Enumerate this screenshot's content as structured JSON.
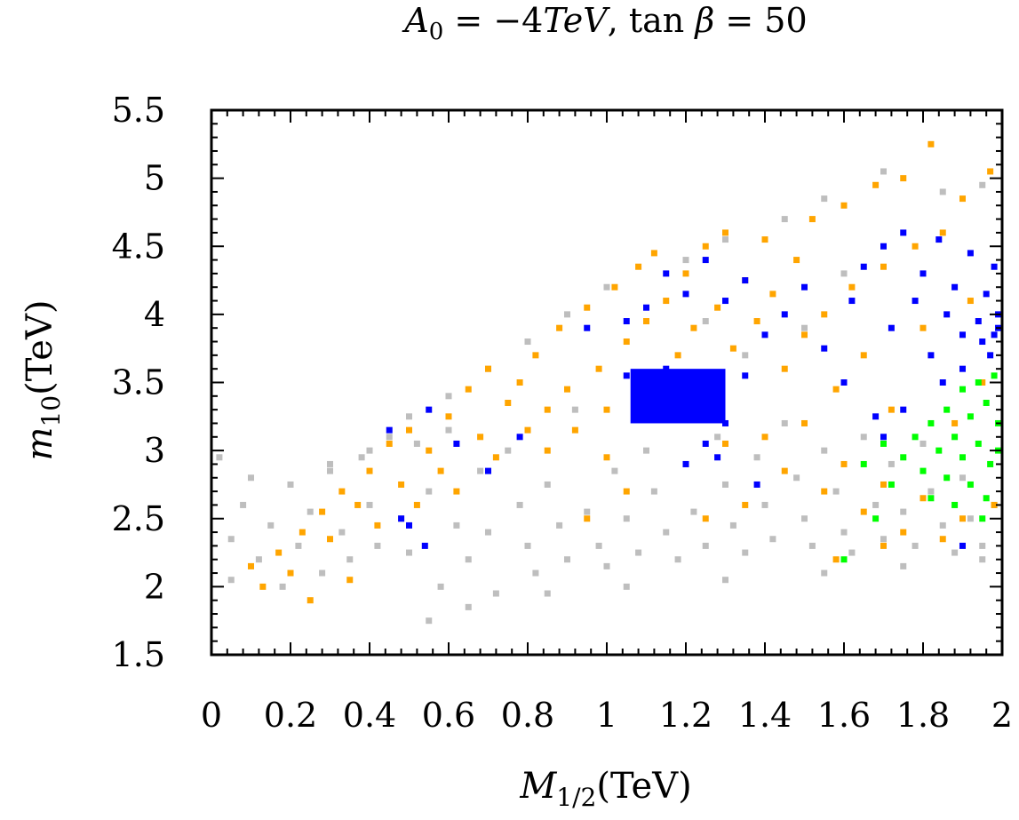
{
  "chart_data": {
    "type": "scatter",
    "title": {
      "lhs": "A",
      "lhs_sub": "0",
      "eq1": " = −4",
      "unit": "TeV",
      "sep": ", tan ",
      "beta": "β",
      "eq2": " = 50"
    },
    "xlabel": {
      "main": "M",
      "sub": "1/2",
      "unit": "(TeV)"
    },
    "ylabel": {
      "main": "m",
      "sub": "10",
      "unit": "(TeV)"
    },
    "xlim": [
      0,
      2
    ],
    "ylim": [
      1.5,
      5.5
    ],
    "x_ticks": [
      "0",
      "0.2",
      "0.4",
      "0.6",
      "0.8",
      "1",
      "1.2",
      "1.4",
      "1.6",
      "1.8",
      "2"
    ],
    "y_ticks": [
      "1.5",
      "2",
      "2.5",
      "3",
      "3.5",
      "4",
      "4.5",
      "5",
      "5.5"
    ],
    "grid": false,
    "legend": "none",
    "colors": {
      "gray": "#bebebe",
      "orange": "#ffa500",
      "blue": "#0000ff",
      "green": "#00ff00"
    },
    "series": [
      {
        "color": "gray",
        "points": [
          [
            0.02,
            2.95
          ],
          [
            0.05,
            2.35
          ],
          [
            0.08,
            2.6
          ],
          [
            0.05,
            2.05
          ],
          [
            0.1,
            2.8
          ],
          [
            0.12,
            2.2
          ],
          [
            0.15,
            2.45
          ],
          [
            0.18,
            2.0
          ],
          [
            0.2,
            2.75
          ],
          [
            0.22,
            2.3
          ],
          [
            0.25,
            2.55
          ],
          [
            0.28,
            2.1
          ],
          [
            0.3,
            2.85
          ],
          [
            0.33,
            2.4
          ],
          [
            0.35,
            2.2
          ],
          [
            0.38,
            2.95
          ],
          [
            0.4,
            2.6
          ],
          [
            0.42,
            2.3
          ],
          [
            0.45,
            3.1
          ],
          [
            0.48,
            2.5
          ],
          [
            0.5,
            2.25
          ],
          [
            0.52,
            3.05
          ],
          [
            0.55,
            2.7
          ],
          [
            0.58,
            2.0
          ],
          [
            0.6,
            3.15
          ],
          [
            0.62,
            2.45
          ],
          [
            0.65,
            2.2
          ],
          [
            0.68,
            2.85
          ],
          [
            0.7,
            2.4
          ],
          [
            0.72,
            1.95
          ],
          [
            0.75,
            3.0
          ],
          [
            0.78,
            2.6
          ],
          [
            0.8,
            2.3
          ],
          [
            0.82,
            2.1
          ],
          [
            0.85,
            2.75
          ],
          [
            0.88,
            2.45
          ],
          [
            0.9,
            2.2
          ],
          [
            0.92,
            3.3
          ],
          [
            0.95,
            2.55
          ],
          [
            0.98,
            2.3
          ],
          [
            1.0,
            2.15
          ],
          [
            1.02,
            2.85
          ],
          [
            1.05,
            2.5
          ],
          [
            1.08,
            2.25
          ],
          [
            1.1,
            3.0
          ],
          [
            1.12,
            2.7
          ],
          [
            1.15,
            2.4
          ],
          [
            1.18,
            2.2
          ],
          [
            1.2,
            2.9
          ],
          [
            1.22,
            2.55
          ],
          [
            1.25,
            2.3
          ],
          [
            1.28,
            3.1
          ],
          [
            1.3,
            2.75
          ],
          [
            1.32,
            2.45
          ],
          [
            1.35,
            2.25
          ],
          [
            1.38,
            2.95
          ],
          [
            1.4,
            2.6
          ],
          [
            1.42,
            2.35
          ],
          [
            1.45,
            3.2
          ],
          [
            1.48,
            2.8
          ],
          [
            1.5,
            2.5
          ],
          [
            1.52,
            2.3
          ],
          [
            1.55,
            3.0
          ],
          [
            1.58,
            2.7
          ],
          [
            1.6,
            2.4
          ],
          [
            1.62,
            2.25
          ],
          [
            1.65,
            3.1
          ],
          [
            1.68,
            2.6
          ],
          [
            1.7,
            2.35
          ],
          [
            1.72,
            2.9
          ],
          [
            1.75,
            2.55
          ],
          [
            1.78,
            2.3
          ],
          [
            1.8,
            3.05
          ],
          [
            1.82,
            2.7
          ],
          [
            1.85,
            2.45
          ],
          [
            1.88,
            2.25
          ],
          [
            1.9,
            2.8
          ],
          [
            1.92,
            2.5
          ],
          [
            1.95,
            2.3
          ],
          [
            1.98,
            2.6
          ],
          [
            0.7,
            3.6
          ],
          [
            0.8,
            3.8
          ],
          [
            0.9,
            4.0
          ],
          [
            1.0,
            4.2
          ],
          [
            1.2,
            4.4
          ],
          [
            1.3,
            4.55
          ],
          [
            1.45,
            4.7
          ],
          [
            1.55,
            4.85
          ],
          [
            1.7,
            5.05
          ],
          [
            1.85,
            4.9
          ],
          [
            1.95,
            4.95
          ],
          [
            1.6,
            4.3
          ],
          [
            1.5,
            3.9
          ],
          [
            1.35,
            3.7
          ],
          [
            1.25,
            3.95
          ],
          [
            0.6,
            3.4
          ],
          [
            0.5,
            3.25
          ],
          [
            0.4,
            3.0
          ],
          [
            0.3,
            2.9
          ],
          [
            0.55,
            1.75
          ],
          [
            0.65,
            1.85
          ],
          [
            0.85,
            1.95
          ],
          [
            1.05,
            2.0
          ],
          [
            1.3,
            2.05
          ],
          [
            1.55,
            2.1
          ],
          [
            1.75,
            2.15
          ],
          [
            1.95,
            2.2
          ]
        ]
      },
      {
        "color": "orange",
        "points": [
          [
            0.1,
            2.15
          ],
          [
            0.13,
            2.0
          ],
          [
            0.17,
            2.25
          ],
          [
            0.2,
            2.1
          ],
          [
            0.23,
            2.4
          ],
          [
            0.25,
            1.9
          ],
          [
            0.28,
            2.55
          ],
          [
            0.3,
            2.35
          ],
          [
            0.33,
            2.7
          ],
          [
            0.35,
            2.05
          ],
          [
            0.37,
            2.6
          ],
          [
            0.4,
            2.85
          ],
          [
            0.42,
            2.45
          ],
          [
            0.45,
            3.05
          ],
          [
            0.48,
            2.75
          ],
          [
            0.5,
            3.15
          ],
          [
            0.52,
            2.6
          ],
          [
            0.55,
            3.0
          ],
          [
            0.58,
            2.85
          ],
          [
            0.6,
            3.25
          ],
          [
            0.62,
            2.7
          ],
          [
            0.65,
            3.45
          ],
          [
            0.68,
            3.1
          ],
          [
            0.7,
            3.6
          ],
          [
            0.72,
            2.95
          ],
          [
            0.75,
            3.35
          ],
          [
            0.78,
            3.5
          ],
          [
            0.8,
            3.15
          ],
          [
            0.82,
            3.7
          ],
          [
            0.85,
            3.3
          ],
          [
            0.88,
            3.9
          ],
          [
            0.9,
            3.45
          ],
          [
            0.92,
            3.15
          ],
          [
            0.95,
            4.05
          ],
          [
            0.98,
            3.6
          ],
          [
            1.0,
            3.3
          ],
          [
            1.02,
            4.2
          ],
          [
            1.05,
            3.8
          ],
          [
            1.08,
            4.35
          ],
          [
            1.1,
            3.95
          ],
          [
            1.12,
            4.45
          ],
          [
            1.15,
            4.1
          ],
          [
            1.18,
            3.7
          ],
          [
            1.2,
            4.3
          ],
          [
            1.22,
            3.9
          ],
          [
            1.25,
            4.5
          ],
          [
            1.28,
            4.05
          ],
          [
            1.3,
            4.6
          ],
          [
            1.32,
            3.75
          ],
          [
            1.35,
            4.25
          ],
          [
            1.38,
            3.95
          ],
          [
            1.4,
            4.55
          ],
          [
            1.42,
            4.15
          ],
          [
            1.45,
            3.6
          ],
          [
            1.48,
            4.4
          ],
          [
            1.5,
            3.85
          ],
          [
            1.52,
            4.7
          ],
          [
            1.55,
            4.0
          ],
          [
            1.58,
            3.45
          ],
          [
            1.6,
            4.8
          ],
          [
            1.62,
            4.2
          ],
          [
            1.65,
            3.7
          ],
          [
            1.68,
            4.95
          ],
          [
            1.7,
            4.35
          ],
          [
            1.72,
            3.3
          ],
          [
            1.75,
            5.0
          ],
          [
            1.78,
            4.5
          ],
          [
            1.8,
            3.9
          ],
          [
            1.82,
            5.25
          ],
          [
            1.85,
            4.6
          ],
          [
            1.88,
            3.2
          ],
          [
            1.9,
            4.85
          ],
          [
            1.92,
            4.1
          ],
          [
            1.95,
            3.5
          ],
          [
            1.97,
            5.05
          ],
          [
            1.98,
            2.6
          ],
          [
            1.6,
            2.9
          ],
          [
            1.65,
            2.55
          ],
          [
            1.7,
            2.75
          ],
          [
            1.75,
            2.4
          ],
          [
            1.8,
            2.65
          ],
          [
            1.85,
            2.35
          ],
          [
            1.9,
            2.5
          ],
          [
            1.4,
            3.1
          ],
          [
            1.45,
            2.85
          ],
          [
            1.5,
            3.2
          ],
          [
            1.55,
            2.7
          ],
          [
            1.3,
            3.05
          ],
          [
            1.35,
            2.6
          ],
          [
            1.0,
            2.95
          ],
          [
            1.05,
            2.7
          ],
          [
            0.95,
            2.5
          ],
          [
            0.85,
            3.0
          ],
          [
            1.25,
            2.5
          ],
          [
            1.58,
            2.2
          ],
          [
            1.7,
            2.3
          ]
        ]
      },
      {
        "color": "blue",
        "points": [
          [
            0.45,
            3.15
          ],
          [
            0.48,
            2.5
          ],
          [
            0.5,
            2.45
          ],
          [
            0.55,
            3.3
          ],
          [
            0.54,
            2.3
          ],
          [
            0.62,
            3.05
          ],
          [
            0.7,
            2.85
          ],
          [
            0.78,
            3.1
          ],
          [
            0.95,
            3.9
          ],
          [
            1.05,
            3.95
          ],
          [
            1.1,
            4.05
          ],
          [
            1.15,
            4.3
          ],
          [
            1.2,
            4.15
          ],
          [
            1.25,
            4.4
          ],
          [
            1.3,
            4.1
          ],
          [
            1.35,
            4.25
          ],
          [
            1.4,
            3.85
          ],
          [
            1.45,
            4.0
          ],
          [
            1.5,
            4.2
          ],
          [
            1.55,
            3.75
          ],
          [
            1.6,
            3.5
          ],
          [
            1.62,
            4.1
          ],
          [
            1.65,
            4.35
          ],
          [
            1.68,
            3.25
          ],
          [
            1.7,
            4.5
          ],
          [
            1.72,
            3.9
          ],
          [
            1.75,
            4.6
          ],
          [
            1.78,
            4.1
          ],
          [
            1.8,
            4.3
          ],
          [
            1.82,
            3.7
          ],
          [
            1.84,
            4.55
          ],
          [
            1.86,
            4.0
          ],
          [
            1.88,
            4.2
          ],
          [
            1.9,
            3.85
          ],
          [
            1.92,
            4.45
          ],
          [
            1.94,
            3.95
          ],
          [
            1.96,
            4.15
          ],
          [
            1.98,
            4.35
          ],
          [
            1.99,
            3.9
          ],
          [
            1.85,
            3.5
          ],
          [
            1.9,
            3.6
          ],
          [
            1.95,
            3.8
          ],
          [
            1.97,
            3.7
          ],
          [
            1.99,
            4.0
          ],
          [
            1.98,
            3.85
          ],
          [
            1.75,
            3.3
          ],
          [
            1.7,
            3.1
          ],
          [
            1.25,
            3.05
          ],
          [
            1.28,
            2.95
          ],
          [
            1.2,
            2.9
          ],
          [
            1.38,
            2.75
          ],
          [
            1.3,
            3.2
          ],
          [
            1.9,
            2.3
          ],
          [
            1.35,
            3.55
          ],
          [
            1.15,
            3.6
          ],
          [
            1.05,
            3.55
          ],
          [
            1.12,
            3.3
          ],
          [
            1.22,
            3.25
          ]
        ]
      },
      {
        "color": "green",
        "points": [
          [
            1.6,
            2.2
          ],
          [
            1.68,
            2.5
          ],
          [
            1.72,
            2.75
          ],
          [
            1.75,
            2.95
          ],
          [
            1.78,
            3.1
          ],
          [
            1.8,
            2.85
          ],
          [
            1.82,
            3.2
          ],
          [
            1.84,
            3.0
          ],
          [
            1.86,
            3.3
          ],
          [
            1.88,
            3.1
          ],
          [
            1.9,
            3.45
          ],
          [
            1.92,
            3.25
          ],
          [
            1.94,
            3.5
          ],
          [
            1.96,
            3.35
          ],
          [
            1.98,
            3.55
          ],
          [
            1.99,
            3.2
          ],
          [
            1.82,
            2.65
          ],
          [
            1.86,
            2.8
          ],
          [
            1.9,
            2.95
          ],
          [
            1.94,
            3.05
          ],
          [
            1.97,
            2.9
          ],
          [
            1.99,
            3.0
          ],
          [
            1.88,
            2.6
          ],
          [
            1.92,
            2.75
          ],
          [
            1.96,
            2.65
          ],
          [
            1.65,
            2.9
          ],
          [
            1.7,
            3.05
          ],
          [
            1.95,
            2.5
          ]
        ]
      }
    ],
    "blob": {
      "color": "blue",
      "x": [
        1.06,
        1.3
      ],
      "y": [
        3.2,
        3.6
      ]
    }
  }
}
